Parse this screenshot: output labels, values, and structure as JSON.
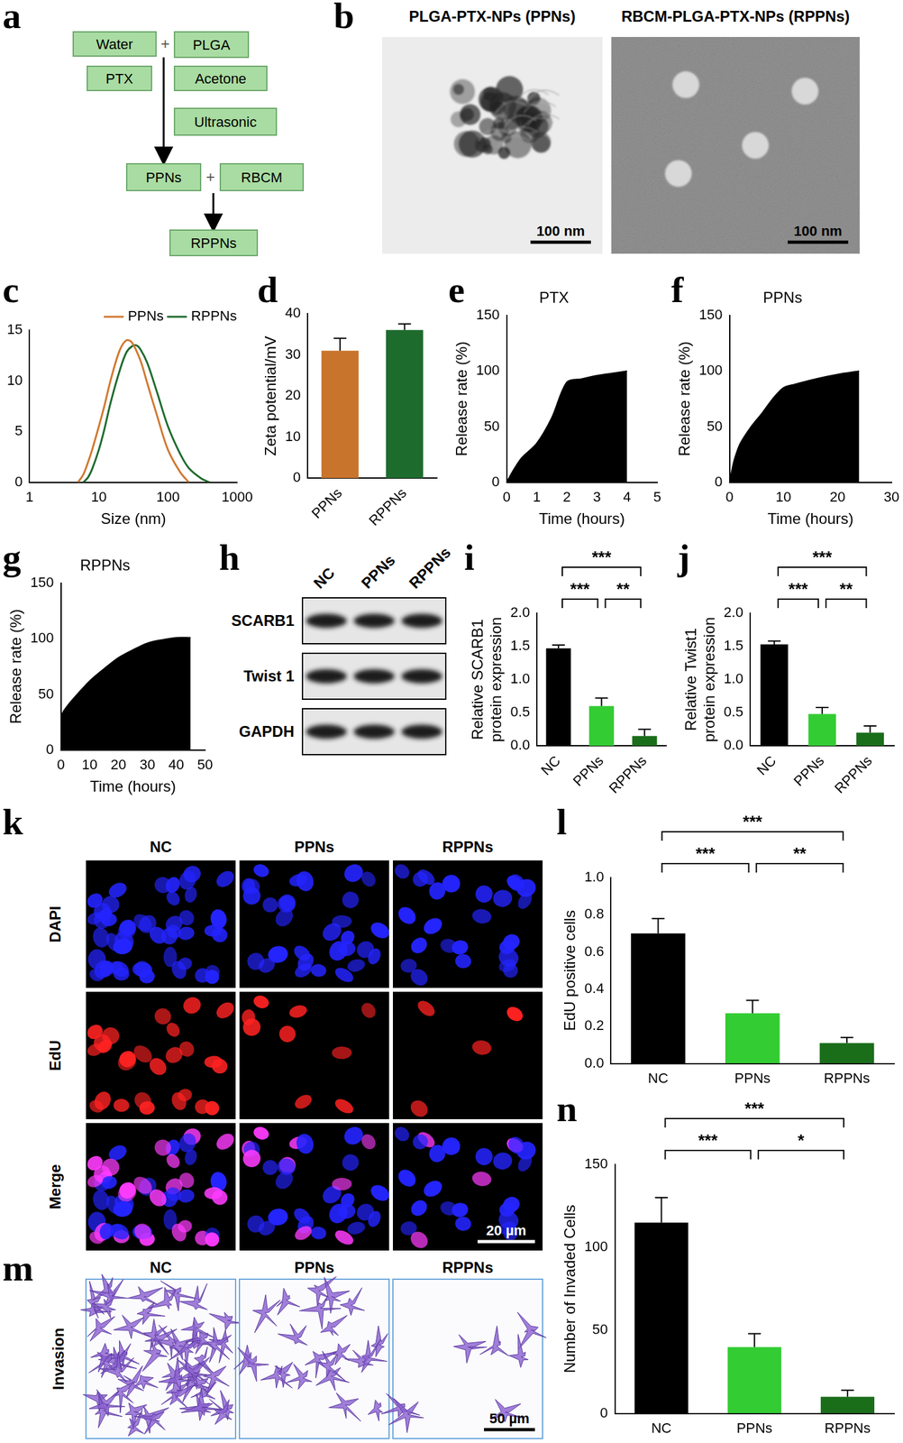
{
  "flowchart": {
    "panel": "a",
    "rows": [
      {
        "boxes": [
          "Water",
          "PLGA"
        ],
        "joiner": "+"
      },
      {
        "boxes": [
          "PTX",
          "Acetone"
        ]
      },
      {
        "boxes": [
          "Ultrasonic"
        ]
      },
      {
        "boxes": [
          "PPNs",
          "RBCM"
        ],
        "joiner": "+"
      },
      {
        "boxes": [
          "RPPNs"
        ]
      }
    ]
  },
  "micrographs": {
    "panel": "b",
    "images": [
      {
        "title": "PLGA-PTX-NPs (PPNs)",
        "scale_bar": "100 nm"
      },
      {
        "title": "RBCM-PLGA-PTX-NPs (RPPNs)",
        "scale_bar": "100 nm"
      }
    ]
  },
  "western_blot": {
    "panel": "h",
    "lanes": [
      "NC",
      "PPNs",
      "RPPNs"
    ],
    "proteins": [
      "SCARB1",
      "Twist 1",
      "GAPDH"
    ]
  },
  "fluorescence": {
    "panel": "k",
    "columns": [
      "NC",
      "PPNs",
      "RPPNs"
    ],
    "rows": [
      "DAPI",
      "EdU",
      "Merge"
    ],
    "scale_bar": "20 µm"
  },
  "invasion": {
    "panel": "m",
    "columns": [
      "NC",
      "PPNs",
      "RPPNs"
    ],
    "row": "Invasion",
    "scale_bar": "50 µm"
  },
  "chart_data": [
    {
      "panel": "c",
      "type": "line",
      "x_label": "Size (nm)",
      "log": "x",
      "xlim": [
        1,
        1000
      ],
      "xticks": [
        1,
        10,
        100,
        1000
      ],
      "ylim": [
        0,
        15
      ],
      "yticks": [
        0,
        5,
        10,
        15
      ],
      "grid": false,
      "legend": "upper right",
      "series": [
        {
          "name": "PPNs",
          "color": "#d2782f",
          "x": [
            5,
            6,
            7,
            8,
            10,
            12,
            15,
            20,
            25,
            30,
            40,
            50,
            70,
            100,
            150,
            200
          ],
          "values": [
            0,
            0.8,
            2,
            3.2,
            5.5,
            7.5,
            10.2,
            13,
            14,
            13.8,
            12,
            9.8,
            6.5,
            3.2,
            1,
            0
          ]
        },
        {
          "name": "RPPNs",
          "color": "#1e6b2e",
          "x": [
            6,
            7,
            8,
            10,
            12,
            15,
            20,
            25,
            30,
            35,
            40,
            50,
            70,
            100,
            150,
            200,
            300,
            400
          ],
          "values": [
            0,
            0.5,
            1.3,
            3.2,
            5.2,
            8,
            11,
            12.8,
            13.4,
            13.5,
            13.1,
            11.8,
            8.8,
            5.5,
            2.8,
            1.4,
            0.4,
            0
          ]
        }
      ]
    },
    {
      "panel": "d",
      "type": "bar",
      "y_label": "Zeta potential/mV",
      "categories": [
        "PPNs",
        "RPPNs"
      ],
      "values": [
        31,
        36
      ],
      "error": [
        3,
        1.5
      ],
      "colors": [
        "#c9742d",
        "#1e6b2e"
      ],
      "ylim": [
        0,
        40
      ],
      "yticks": [
        0,
        10,
        20,
        30,
        40
      ],
      "grid": false
    },
    {
      "panel": "e",
      "type": "area",
      "title": "PTX",
      "x_label": "Time (hours)",
      "y_label": "Release rate (%)",
      "x": [
        0,
        0.25,
        0.5,
        1,
        1.5,
        2,
        2.5,
        3,
        3.5,
        4
      ],
      "values": [
        0,
        12,
        22,
        35,
        58,
        90,
        93,
        96,
        98,
        100
      ],
      "color": "#000000",
      "xlim": [
        0,
        5
      ],
      "xticks": [
        0,
        1,
        2,
        3,
        4,
        5
      ],
      "ylim": [
        0,
        150
      ],
      "yticks": [
        0,
        50,
        100,
        150
      ],
      "grid": false
    },
    {
      "panel": "f",
      "type": "area",
      "title": "PPNs",
      "x_label": "Time (hours)",
      "y_label": "Release rate (%)",
      "x": [
        0,
        0.5,
        1,
        2,
        4,
        6,
        8,
        10,
        12,
        16,
        20,
        24
      ],
      "values": [
        0,
        12,
        22,
        35,
        50,
        62,
        75,
        85,
        88,
        93,
        97,
        100
      ],
      "color": "#000000",
      "xlim": [
        0,
        30
      ],
      "xticks": [
        0,
        10,
        20,
        30
      ],
      "ylim": [
        0,
        150
      ],
      "yticks": [
        0,
        50,
        100,
        150
      ],
      "grid": false
    },
    {
      "panel": "g",
      "type": "area",
      "title": "RPPNs",
      "x_label": "Time (hours)",
      "y_label": "Release rate (%)",
      "x": [
        0,
        1,
        3,
        5,
        10,
        15,
        20,
        25,
        30,
        35,
        40,
        45
      ],
      "values": [
        30,
        35,
        42,
        48,
        62,
        73,
        83,
        90,
        96,
        99,
        101,
        101
      ],
      "color": "#000000",
      "xlim": [
        0,
        50
      ],
      "xticks": [
        0,
        10,
        20,
        30,
        40,
        50
      ],
      "ylim": [
        0,
        150
      ],
      "yticks": [
        0,
        50,
        100,
        150
      ],
      "grid": false
    },
    {
      "panel": "i",
      "type": "bar",
      "y_label": [
        "Relative SCARB1",
        "protein expression"
      ],
      "categories": [
        "NC",
        "PPNs",
        "RPPNs"
      ],
      "values": [
        1.47,
        0.6,
        0.15
      ],
      "error": [
        0.05,
        0.12,
        0.1
      ],
      "colors": [
        "#000000",
        "#33cc33",
        "#1a6e1a"
      ],
      "ylim": [
        0,
        2
      ],
      "yticks": [
        {
          "value": 0,
          "label": "0.0"
        },
        0.5,
        {
          "value": 1,
          "label": "1.0"
        },
        1.5,
        {
          "value": 2,
          "label": "2.0"
        }
      ],
      "grid": false,
      "annotations": [
        {
          "from": "NC",
          "to": "PPNs",
          "label": "***"
        },
        {
          "from": "PPNs",
          "to": "RPPNs",
          "label": "**"
        },
        {
          "from": "NC",
          "to": "RPPNs",
          "label": "***"
        }
      ]
    },
    {
      "panel": "j",
      "type": "bar",
      "y_label": [
        "Relative Twist1",
        "protein expression"
      ],
      "categories": [
        "NC",
        "PPNs",
        "RPPNs"
      ],
      "values": [
        1.53,
        0.48,
        0.2
      ],
      "error": [
        0.05,
        0.1,
        0.1
      ],
      "colors": [
        "#000000",
        "#33cc33",
        "#1a6e1a"
      ],
      "ylim": [
        0,
        2
      ],
      "yticks": [
        {
          "value": 0,
          "label": "0.0"
        },
        0.5,
        {
          "value": 1,
          "label": "1.0"
        },
        1.5,
        {
          "value": 2,
          "label": "2.0"
        }
      ],
      "grid": false,
      "annotations": [
        {
          "from": "NC",
          "to": "PPNs",
          "label": "***"
        },
        {
          "from": "PPNs",
          "to": "RPPNs",
          "label": "**"
        },
        {
          "from": "NC",
          "to": "RPPNs",
          "label": "***"
        }
      ]
    },
    {
      "panel": "l",
      "type": "bar",
      "y_label": "EdU positive cells",
      "categories": [
        "NC",
        "PPNs",
        "RPPNs"
      ],
      "values": [
        0.7,
        0.27,
        0.11
      ],
      "error": [
        0.08,
        0.07,
        0.03
      ],
      "colors": [
        "#000000",
        "#33cc33",
        "#1a6e1a"
      ],
      "ylim": [
        0,
        1
      ],
      "yticks": [
        {
          "value": 0,
          "label": "0.0"
        },
        0.2,
        0.4,
        0.6,
        0.8,
        {
          "value": 1,
          "label": "1.0"
        }
      ],
      "grid": false,
      "annotations": [
        {
          "from": "NC",
          "to": "PPNs",
          "label": "***"
        },
        {
          "from": "PPNs",
          "to": "RPPNs",
          "label": "**"
        },
        {
          "from": "NC",
          "to": "RPPNs",
          "label": "***"
        }
      ]
    },
    {
      "panel": "n",
      "type": "bar",
      "y_label": "Number of Invaded Cells",
      "categories": [
        "NC",
        "PPNs",
        "RPPNs"
      ],
      "values": [
        115,
        40,
        10
      ],
      "error": [
        15,
        8,
        4
      ],
      "colors": [
        "#000000",
        "#33cc33",
        "#1a6e1a"
      ],
      "ylim": [
        0,
        150
      ],
      "yticks": [
        0,
        50,
        100,
        150
      ],
      "grid": false,
      "annotations": [
        {
          "from": "NC",
          "to": "PPNs",
          "label": "***"
        },
        {
          "from": "PPNs",
          "to": "RPPNs",
          "label": "*"
        },
        {
          "from": "NC",
          "to": "RPPNs",
          "label": "***"
        }
      ]
    }
  ]
}
